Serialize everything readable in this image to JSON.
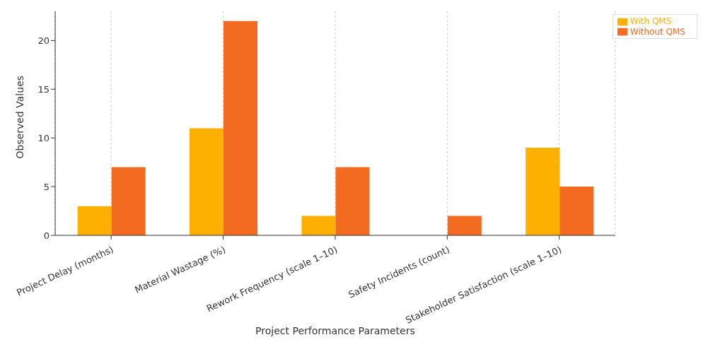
{
  "chart_data": {
    "type": "bar",
    "xlabel": "Project Performance Parameters",
    "ylabel": "Observed Values",
    "categories": [
      "Project Delay (months)",
      "Material Wastage (%)",
      "Rework Frequency (scale 1–10)",
      "Safety Incidents (count)",
      "Stakeholder Satisfaction (scale 1–10)"
    ],
    "series": [
      {
        "name": "With QMS",
        "color": "#fdb000",
        "values": [
          3,
          11,
          2,
          0,
          9
        ]
      },
      {
        "name": "Without QMS",
        "color": "#f26b21",
        "values": [
          7,
          22,
          7,
          2,
          5
        ]
      }
    ],
    "ylim": [
      0,
      23
    ],
    "yticks": [
      0,
      5,
      10,
      15,
      20
    ],
    "grid": "x",
    "legend": "top right"
  }
}
